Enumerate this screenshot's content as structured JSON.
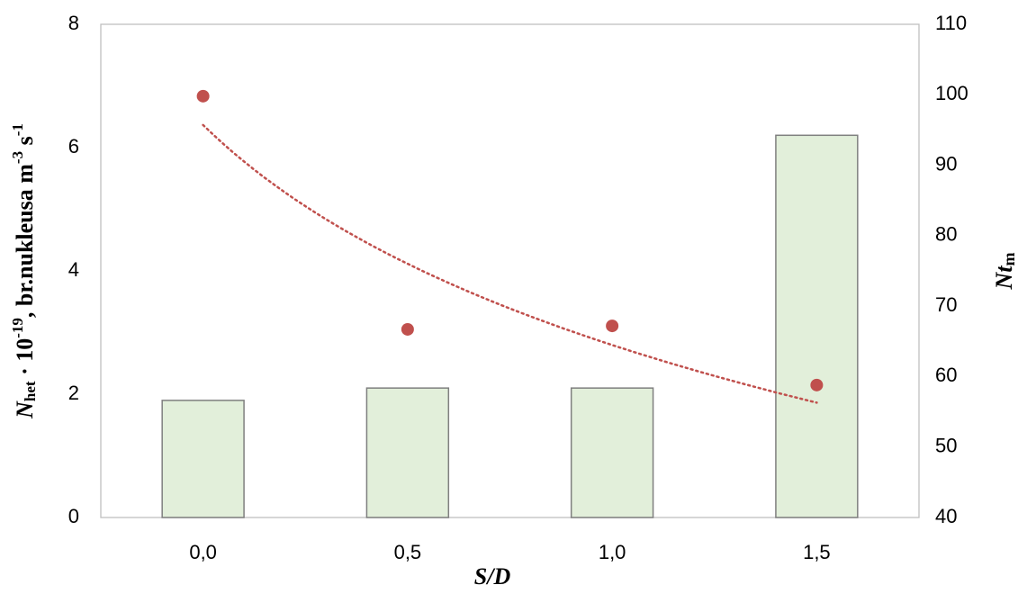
{
  "chart_data": {
    "type": "bar",
    "categories": [
      "0,0",
      "0,5",
      "1,0",
      "1,5"
    ],
    "xlabel": "S/D",
    "ylabel": [
      "N",
      "het",
      " · 10",
      "-19",
      ", br.nukleusa m",
      "-3",
      " s",
      "-1"
    ],
    "y2label": [
      "Nt",
      "m"
    ],
    "series": [
      {
        "type": "bar",
        "color": "#e2efda",
        "edge": "#7f7f7f",
        "values": [
          1.9,
          2.1,
          2.1,
          6.2
        ]
      },
      {
        "type": "scatter",
        "axis": "y2",
        "color": "#c0504d",
        "values": [
          99.8,
          66.7,
          67.2,
          58.8
        ],
        "trendline": "logarithmic"
      }
    ],
    "ylim": [
      0,
      8
    ],
    "yticks": [
      0,
      2,
      4,
      6,
      8
    ],
    "y2lim": [
      40,
      110
    ],
    "y2ticks": [
      40,
      50,
      60,
      70,
      80,
      90,
      100,
      110
    ],
    "grid": false
  }
}
